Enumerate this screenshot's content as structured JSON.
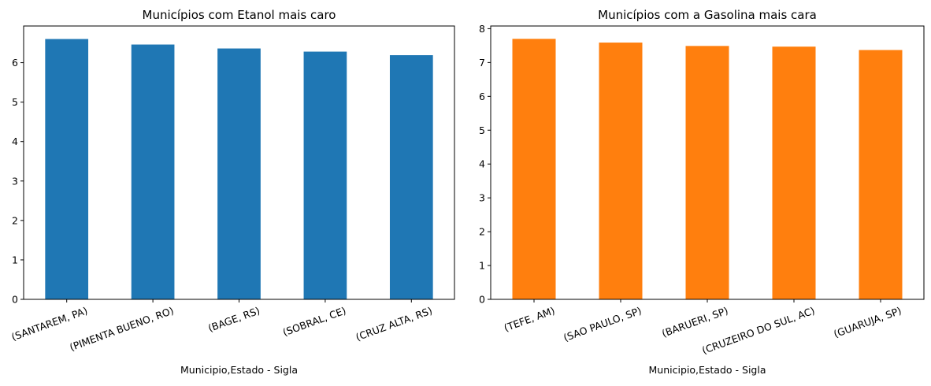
{
  "chart_data": [
    {
      "type": "bar",
      "title": "Municípios com Etanol mais caro",
      "xlabel": "Municipio,Estado - Sigla",
      "ylabel": "",
      "categories": [
        "(SANTAREM, PA)",
        "(PIMENTA BUENO, RO)",
        "(BAGE, RS)",
        "(SOBRAL, CE)",
        "(CRUZ ALTA, RS)"
      ],
      "values": [
        6.6,
        6.46,
        6.36,
        6.28,
        6.19
      ],
      "ylim": [
        0,
        6.93
      ],
      "yticks": [
        "0",
        "1",
        "2",
        "3",
        "4",
        "5",
        "6"
      ],
      "color": "#1f77b4",
      "grid": false
    },
    {
      "type": "bar",
      "title": "Municípios com a Gasolina mais cara",
      "xlabel": "Municipio,Estado - Sigla",
      "ylabel": "",
      "categories": [
        "(TEFE, AM)",
        "(SAO PAULO, SP)",
        "(BARUERI, SP)",
        "(CRUZEIRO DO SUL, AC)",
        "(GUARUJA, SP)"
      ],
      "values": [
        7.7,
        7.59,
        7.49,
        7.47,
        7.37
      ],
      "ylim": [
        0,
        8.08
      ],
      "yticks": [
        "0",
        "1",
        "2",
        "3",
        "4",
        "5",
        "6",
        "7",
        "8"
      ],
      "color": "#ff7f0e",
      "grid": false
    }
  ]
}
